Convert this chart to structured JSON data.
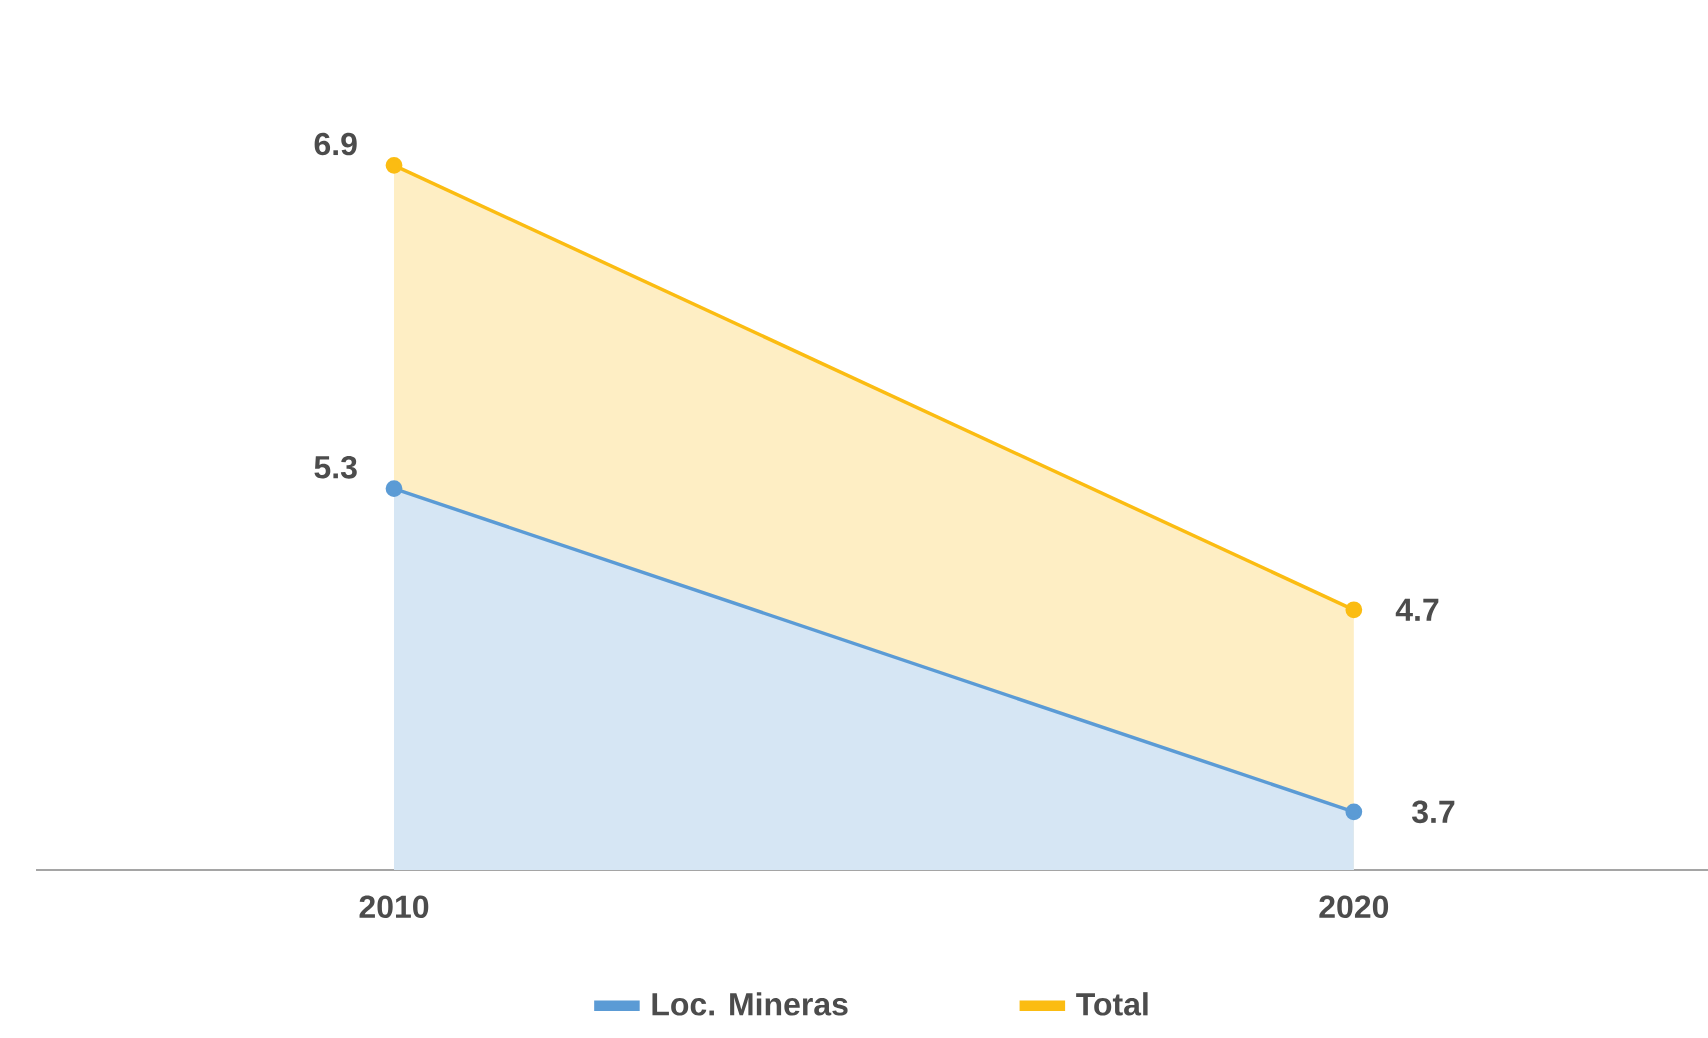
{
  "chart_data": {
    "type": "area",
    "categories": [
      "2010",
      "2020"
    ],
    "series": [
      {
        "name": "Loc. Mineras",
        "color": "#5b9bd5",
        "values": [
          5.3,
          3.7
        ],
        "value_labels": [
          "5.3",
          "3.7"
        ]
      },
      {
        "name": "Total",
        "color": "#fbbc12",
        "values": [
          6.9,
          4.7
        ],
        "value_labels": [
          "6.9",
          "4.7"
        ]
      }
    ],
    "legend": "bottom",
    "marker": "circle",
    "line_style": "solid",
    "tick_labels": "x"
  }
}
